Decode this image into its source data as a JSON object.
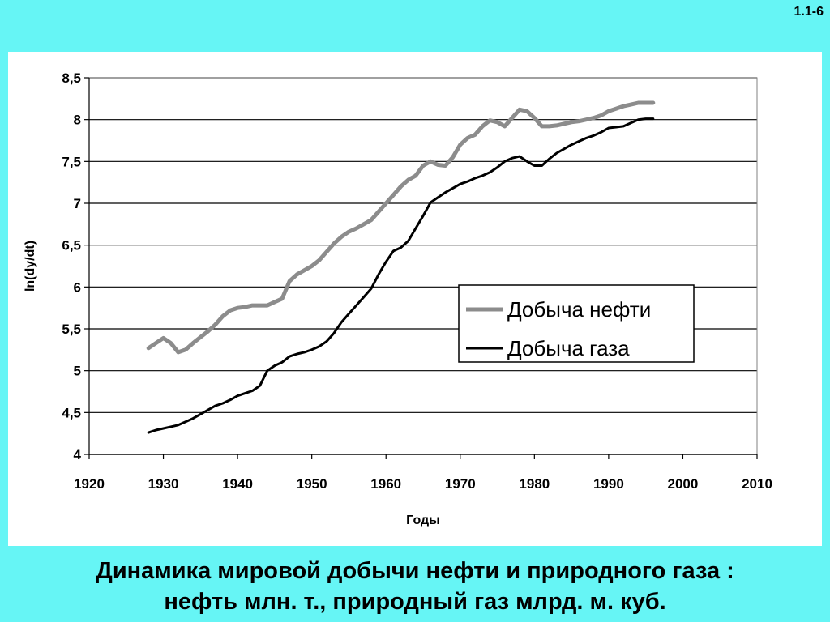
{
  "slide_number": "1.1-6",
  "caption": {
    "line1": "Динамика мировой добычи нефти и природного газа :",
    "line2": "нефть млн. т., природный газ  млрд. м. куб."
  },
  "colors": {
    "background": "#66f5f5",
    "panel": "#ffffff",
    "oil": "#8c8c8c",
    "gas": "#000000"
  },
  "chart_data": {
    "type": "line",
    "title": "",
    "xlabel": "Годы",
    "ylabel": "ln(dy/dt)",
    "xlim": [
      1920,
      2010
    ],
    "ylim": [
      4,
      8.5
    ],
    "x_ticks": [
      "1920",
      "1930",
      "1940",
      "1950",
      "1960",
      "1970",
      "1980",
      "1990",
      "2000",
      "2010"
    ],
    "x_tick_values": [
      1920,
      1930,
      1940,
      1950,
      1960,
      1970,
      1980,
      1990,
      2000,
      2010
    ],
    "y_ticks": [
      "4",
      "4,5",
      "5",
      "5,5",
      "6",
      "6,5",
      "7",
      "7,5",
      "8",
      "8,5"
    ],
    "y_tick_values": [
      4,
      4.5,
      5,
      5.5,
      6,
      6.5,
      7,
      7.5,
      8,
      8.5
    ],
    "grid": "horizontal",
    "legend": "right",
    "series": [
      {
        "name": "Добыча нефти",
        "color": "#8c8c8c",
        "points": [
          [
            1928,
            5.27
          ],
          [
            1929,
            5.33
          ],
          [
            1930,
            5.39
          ],
          [
            1931,
            5.33
          ],
          [
            1932,
            5.22
          ],
          [
            1933,
            5.25
          ],
          [
            1934,
            5.33
          ],
          [
            1935,
            5.4
          ],
          [
            1936,
            5.47
          ],
          [
            1937,
            5.55
          ],
          [
            1938,
            5.65
          ],
          [
            1939,
            5.72
          ],
          [
            1940,
            5.75
          ],
          [
            1941,
            5.76
          ],
          [
            1942,
            5.78
          ],
          [
            1943,
            5.78
          ],
          [
            1944,
            5.78
          ],
          [
            1945,
            5.82
          ],
          [
            1946,
            5.86
          ],
          [
            1947,
            6.07
          ],
          [
            1948,
            6.15
          ],
          [
            1949,
            6.2
          ],
          [
            1950,
            6.25
          ],
          [
            1951,
            6.32
          ],
          [
            1952,
            6.42
          ],
          [
            1953,
            6.52
          ],
          [
            1954,
            6.6
          ],
          [
            1955,
            6.66
          ],
          [
            1956,
            6.7
          ],
          [
            1957,
            6.75
          ],
          [
            1958,
            6.8
          ],
          [
            1959,
            6.9
          ],
          [
            1960,
            7.0
          ],
          [
            1961,
            7.1
          ],
          [
            1962,
            7.2
          ],
          [
            1963,
            7.28
          ],
          [
            1964,
            7.33
          ],
          [
            1965,
            7.45
          ],
          [
            1966,
            7.5
          ],
          [
            1967,
            7.46
          ],
          [
            1968,
            7.45
          ],
          [
            1969,
            7.55
          ],
          [
            1970,
            7.7
          ],
          [
            1971,
            7.78
          ],
          [
            1972,
            7.82
          ],
          [
            1973,
            7.92
          ],
          [
            1974,
            7.99
          ],
          [
            1975,
            7.97
          ],
          [
            1976,
            7.92
          ],
          [
            1977,
            8.02
          ],
          [
            1978,
            8.12
          ],
          [
            1979,
            8.1
          ],
          [
            1980,
            8.02
          ],
          [
            1981,
            7.92
          ],
          [
            1982,
            7.92
          ],
          [
            1983,
            7.93
          ],
          [
            1984,
            7.95
          ],
          [
            1985,
            7.97
          ],
          [
            1986,
            7.98
          ],
          [
            1987,
            8.0
          ],
          [
            1988,
            8.02
          ],
          [
            1989,
            8.05
          ],
          [
            1990,
            8.1
          ],
          [
            1991,
            8.13
          ],
          [
            1992,
            8.16
          ],
          [
            1993,
            8.18
          ],
          [
            1994,
            8.2
          ],
          [
            1995,
            8.2
          ],
          [
            1996,
            8.2
          ]
        ]
      },
      {
        "name": "Добыча газа",
        "color": "#000000",
        "points": [
          [
            1928,
            4.26
          ],
          [
            1929,
            4.29
          ],
          [
            1930,
            4.31
          ],
          [
            1931,
            4.33
          ],
          [
            1932,
            4.35
          ],
          [
            1933,
            4.39
          ],
          [
            1934,
            4.43
          ],
          [
            1935,
            4.48
          ],
          [
            1936,
            4.53
          ],
          [
            1937,
            4.58
          ],
          [
            1938,
            4.61
          ],
          [
            1939,
            4.65
          ],
          [
            1940,
            4.7
          ],
          [
            1941,
            4.73
          ],
          [
            1942,
            4.76
          ],
          [
            1943,
            4.82
          ],
          [
            1944,
            5.0
          ],
          [
            1945,
            5.06
          ],
          [
            1946,
            5.1
          ],
          [
            1947,
            5.17
          ],
          [
            1948,
            5.2
          ],
          [
            1949,
            5.22
          ],
          [
            1950,
            5.25
          ],
          [
            1951,
            5.29
          ],
          [
            1952,
            5.35
          ],
          [
            1953,
            5.45
          ],
          [
            1954,
            5.58
          ],
          [
            1955,
            5.68
          ],
          [
            1956,
            5.78
          ],
          [
            1957,
            5.88
          ],
          [
            1958,
            5.98
          ],
          [
            1959,
            6.15
          ],
          [
            1960,
            6.3
          ],
          [
            1961,
            6.43
          ],
          [
            1962,
            6.47
          ],
          [
            1963,
            6.55
          ],
          [
            1964,
            6.7
          ],
          [
            1965,
            6.85
          ],
          [
            1966,
            7.01
          ],
          [
            1967,
            7.07
          ],
          [
            1968,
            7.13
          ],
          [
            1969,
            7.18
          ],
          [
            1970,
            7.23
          ],
          [
            1971,
            7.26
          ],
          [
            1972,
            7.3
          ],
          [
            1973,
            7.33
          ],
          [
            1974,
            7.37
          ],
          [
            1975,
            7.43
          ],
          [
            1976,
            7.5
          ],
          [
            1977,
            7.54
          ],
          [
            1978,
            7.56
          ],
          [
            1979,
            7.5
          ],
          [
            1980,
            7.45
          ],
          [
            1981,
            7.45
          ],
          [
            1982,
            7.53
          ],
          [
            1983,
            7.6
          ],
          [
            1984,
            7.65
          ],
          [
            1985,
            7.7
          ],
          [
            1986,
            7.74
          ],
          [
            1987,
            7.78
          ],
          [
            1988,
            7.81
          ],
          [
            1989,
            7.85
          ],
          [
            1990,
            7.9
          ],
          [
            1991,
            7.91
          ],
          [
            1992,
            7.92
          ],
          [
            1993,
            7.96
          ],
          [
            1994,
            8.0
          ],
          [
            1995,
            8.01
          ],
          [
            1996,
            8.01
          ]
        ]
      }
    ]
  }
}
